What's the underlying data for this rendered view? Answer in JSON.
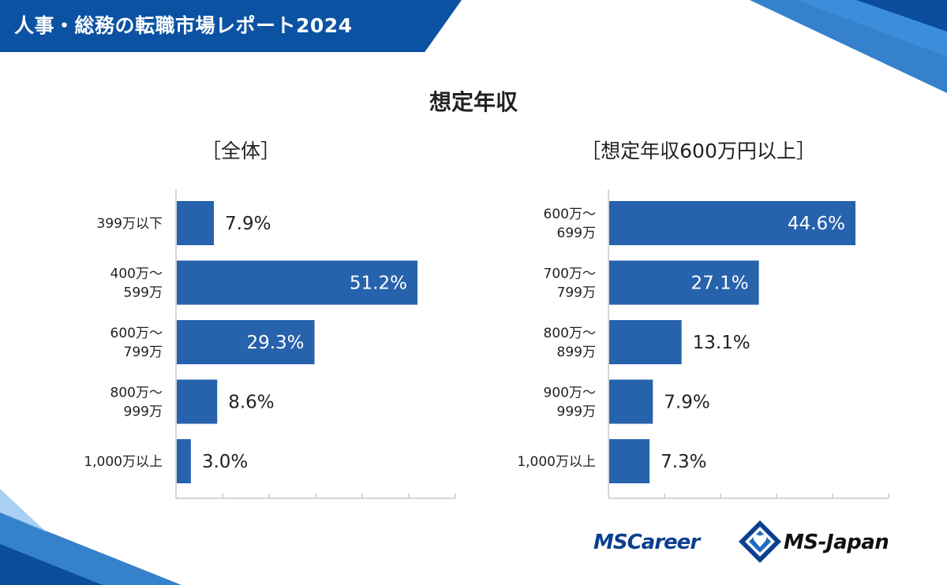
{
  "header": {
    "title": "人事・総務の転職市場レポート2024"
  },
  "main_title": "想定年収",
  "logos": {
    "mscareer": "MSCareer",
    "msjapan": "MS-Japan"
  },
  "colors": {
    "bar": "#2762ad",
    "banner": "#0b52a3",
    "axis": "#c8c8c8"
  },
  "chart_data": [
    {
      "type": "bar",
      "orientation": "horizontal",
      "title": "［全体］",
      "categories": [
        [
          "399万以下"
        ],
        [
          "400万～",
          "599万"
        ],
        [
          "600万～",
          "799万"
        ],
        [
          "800万～",
          "999万"
        ],
        [
          "1,000万以上"
        ]
      ],
      "values": [
        7.9,
        51.2,
        29.3,
        8.6,
        3.0
      ],
      "value_labels": [
        "7.9%",
        "51.2%",
        "29.3%",
        "8.6%",
        "3.0%"
      ],
      "xlim": [
        0,
        60
      ],
      "grid": false
    },
    {
      "type": "bar",
      "orientation": "horizontal",
      "title": "［想定年収600万円以上］",
      "categories": [
        [
          "600万～",
          "699万"
        ],
        [
          "700万～",
          "799万"
        ],
        [
          "800万～",
          "899万"
        ],
        [
          "900万～",
          "999万"
        ],
        [
          "1,000万以上"
        ]
      ],
      "values": [
        44.6,
        27.1,
        13.1,
        7.9,
        7.3
      ],
      "value_labels": [
        "44.6%",
        "27.1%",
        "13.1%",
        "7.9%",
        "7.3%"
      ],
      "xlim": [
        0,
        50
      ],
      "grid": false
    }
  ]
}
